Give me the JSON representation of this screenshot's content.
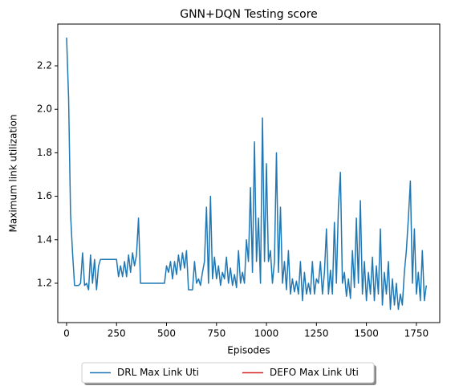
{
  "chart_data": {
    "type": "line",
    "title": "GNN+DQN Testing score",
    "xlabel": "Episodes",
    "ylabel": "Maximum link utilization",
    "x": [
      0,
      10,
      20,
      30,
      40,
      50,
      60,
      70,
      80,
      90,
      100,
      110,
      120,
      130,
      140,
      150,
      160,
      170,
      180,
      190,
      200,
      210,
      220,
      230,
      240,
      250,
      260,
      270,
      280,
      290,
      300,
      310,
      320,
      330,
      340,
      350,
      360,
      370,
      380,
      390,
      400,
      410,
      420,
      430,
      440,
      450,
      460,
      470,
      480,
      490,
      500,
      510,
      520,
      530,
      540,
      550,
      560,
      570,
      580,
      590,
      600,
      610,
      620,
      630,
      640,
      650,
      660,
      670,
      680,
      690,
      700,
      710,
      720,
      730,
      740,
      750,
      760,
      770,
      780,
      790,
      800,
      810,
      820,
      830,
      840,
      850,
      860,
      870,
      880,
      890,
      900,
      910,
      920,
      930,
      940,
      950,
      960,
      970,
      980,
      990,
      1000,
      1010,
      1020,
      1030,
      1040,
      1050,
      1060,
      1070,
      1080,
      1090,
      1100,
      1110,
      1120,
      1130,
      1140,
      1150,
      1160,
      1170,
      1180,
      1190,
      1200,
      1210,
      1220,
      1230,
      1240,
      1250,
      1260,
      1270,
      1280,
      1290,
      1300,
      1310,
      1320,
      1330,
      1340,
      1350,
      1360,
      1370,
      1380,
      1390,
      1400,
      1410,
      1420,
      1430,
      1440,
      1450,
      1460,
      1470,
      1480,
      1490,
      1500,
      1510,
      1520,
      1530,
      1540,
      1550,
      1560,
      1570,
      1580,
      1590,
      1600,
      1610,
      1620,
      1630,
      1640,
      1650,
      1660,
      1670,
      1680,
      1690,
      1700,
      1710,
      1720,
      1730,
      1740,
      1750,
      1760,
      1770,
      1780,
      1790,
      1800
    ],
    "series": [
      {
        "name": "DRL Max Link Uti",
        "color": "#1f77b4",
        "values": [
          2.33,
          2.05,
          1.52,
          1.34,
          1.19,
          1.19,
          1.19,
          1.2,
          1.34,
          1.19,
          1.2,
          1.17,
          1.33,
          1.2,
          1.31,
          1.17,
          1.28,
          1.31,
          1.31,
          1.31,
          1.31,
          1.31,
          1.31,
          1.31,
          1.31,
          1.31,
          1.23,
          1.28,
          1.23,
          1.3,
          1.23,
          1.33,
          1.25,
          1.34,
          1.28,
          1.33,
          1.5,
          1.2,
          1.2,
          1.2,
          1.2,
          1.2,
          1.2,
          1.2,
          1.2,
          1.2,
          1.2,
          1.2,
          1.2,
          1.2,
          1.28,
          1.25,
          1.3,
          1.22,
          1.3,
          1.24,
          1.33,
          1.26,
          1.34,
          1.27,
          1.35,
          1.17,
          1.17,
          1.17,
          1.3,
          1.2,
          1.22,
          1.19,
          1.25,
          1.3,
          1.55,
          1.2,
          1.6,
          1.22,
          1.32,
          1.22,
          1.28,
          1.19,
          1.25,
          1.22,
          1.32,
          1.2,
          1.27,
          1.19,
          1.24,
          1.18,
          1.35,
          1.2,
          1.25,
          1.2,
          1.4,
          1.3,
          1.64,
          1.25,
          1.85,
          1.3,
          1.5,
          1.2,
          1.96,
          1.3,
          1.75,
          1.3,
          1.35,
          1.2,
          1.3,
          1.8,
          1.25,
          1.55,
          1.2,
          1.3,
          1.17,
          1.35,
          1.15,
          1.22,
          1.16,
          1.21,
          1.15,
          1.3,
          1.12,
          1.25,
          1.15,
          1.2,
          1.15,
          1.3,
          1.15,
          1.22,
          1.2,
          1.3,
          1.15,
          1.25,
          1.45,
          1.15,
          1.26,
          1.15,
          1.48,
          1.2,
          1.55,
          1.71,
          1.2,
          1.25,
          1.14,
          1.22,
          1.13,
          1.35,
          1.18,
          1.5,
          1.2,
          1.58,
          1.15,
          1.3,
          1.12,
          1.25,
          1.15,
          1.32,
          1.12,
          1.28,
          1.15,
          1.45,
          1.1,
          1.25,
          1.15,
          1.3,
          1.08,
          1.22,
          1.1,
          1.2,
          1.08,
          1.15,
          1.1,
          1.25,
          1.35,
          1.5,
          1.67,
          1.2,
          1.45,
          1.15,
          1.25,
          1.12,
          1.35,
          1.12,
          1.19
        ]
      },
      {
        "name": "DEFO Max Link Uti",
        "color": "#d62728",
        "values": [
          null,
          null,
          null,
          null,
          null,
          null,
          null,
          null,
          null,
          null,
          null,
          null,
          null,
          null,
          null,
          null,
          null,
          null,
          null,
          null,
          null,
          null,
          null,
          null,
          null,
          null,
          null,
          null,
          null,
          null,
          null,
          null,
          null,
          null,
          null,
          null,
          null,
          null,
          null,
          null,
          null,
          null,
          null,
          null,
          null,
          null,
          null,
          null,
          null,
          null,
          null,
          null,
          null,
          null,
          null,
          null,
          null,
          null,
          null,
          null,
          null,
          null,
          null,
          null,
          null,
          null,
          null,
          null,
          null,
          null,
          null,
          null,
          null,
          null,
          null,
          null,
          null,
          null,
          null,
          null,
          null,
          null,
          null,
          null,
          null,
          null,
          null,
          null,
          null,
          null,
          null,
          null,
          null,
          null,
          null,
          null,
          null,
          null,
          null,
          null,
          null,
          null,
          null,
          null,
          null,
          null,
          null,
          null,
          null,
          null,
          null,
          null,
          null,
          null,
          null,
          null,
          null,
          null,
          null,
          null,
          null,
          null,
          null,
          null,
          null,
          null,
          null,
          null,
          null,
          null,
          null,
          null,
          null,
          null,
          null,
          null,
          null,
          null,
          null,
          null,
          null,
          null,
          null,
          null,
          null,
          null,
          null,
          null,
          null,
          null,
          null,
          null,
          null,
          null,
          null,
          null,
          null,
          null,
          null,
          null,
          null,
          null,
          null,
          null,
          null,
          null,
          null,
          null,
          null,
          null,
          null,
          null,
          null,
          null,
          null,
          null,
          null,
          null,
          null,
          null,
          null
        ]
      }
    ],
    "xlim": [
      -44,
      1867
    ],
    "xticks": [
      0,
      250,
      500,
      750,
      1000,
      1250,
      1500,
      1750
    ],
    "ylim": [
      1.019,
      2.392
    ],
    "yticks": [
      1.2,
      1.4,
      1.6,
      1.8,
      {
        "value": 2,
        "label": "2.0"
      },
      2.2
    ],
    "legend": "below"
  }
}
